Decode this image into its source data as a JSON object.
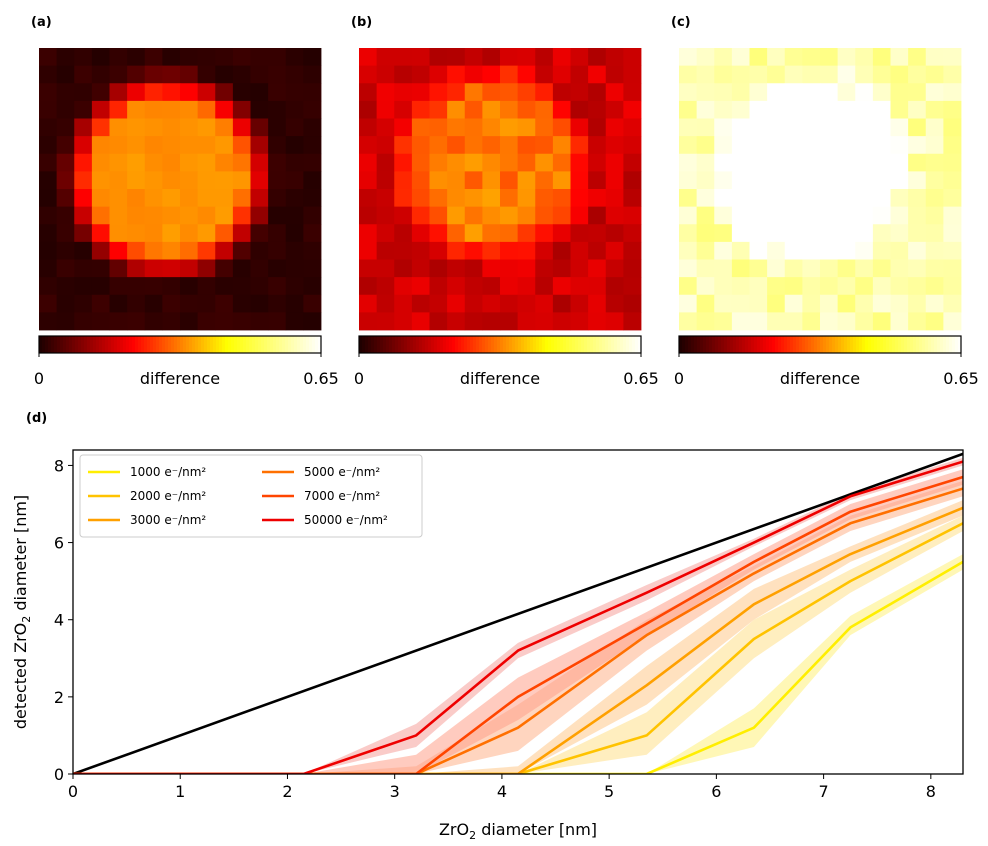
{
  "chart_data": [
    {
      "type": "heatmap",
      "panel_label": "(a)",
      "grid": [
        16,
        16
      ],
      "colormap": "hot",
      "colorbar": {
        "label": "difference",
        "min": 0,
        "max": 0.65,
        "min_label": "0",
        "max_label": "0.65"
      }
    },
    {
      "type": "heatmap",
      "panel_label": "(b)",
      "grid": [
        16,
        16
      ],
      "colormap": "hot",
      "colorbar": {
        "label": "difference",
        "min": 0,
        "max": 0.65,
        "min_label": "0",
        "max_label": "0.65"
      }
    },
    {
      "type": "heatmap",
      "panel_label": "(c)",
      "grid": [
        16,
        16
      ],
      "colormap": "hot",
      "colorbar": {
        "label": "difference",
        "min": 0,
        "max": 0.65,
        "min_label": "0",
        "max_label": "0.65"
      }
    },
    {
      "type": "line",
      "panel_label": "(d)",
      "xlabel_parts": [
        "ZrO",
        "2",
        " diameter [nm]"
      ],
      "ylabel_parts": [
        "detected ZrO",
        "2",
        " diameter [nm]"
      ],
      "xlim": [
        0,
        8.3
      ],
      "ylim": [
        0,
        8.4
      ],
      "xticks": [
        0,
        1,
        2,
        3,
        4,
        5,
        6,
        7,
        8
      ],
      "yticks": [
        0,
        2,
        4,
        6,
        8
      ],
      "legend_position": "upper left",
      "legend_columns": 2,
      "reference_line": {
        "color": "#000000",
        "x": [
          0,
          8.3
        ],
        "y": [
          0,
          8.3
        ]
      },
      "series": [
        {
          "name": "1000 e⁻/nm²",
          "color": "#ffee00",
          "band_color": "#fff07a",
          "x": [
            0,
            2.15,
            3.2,
            4.15,
            5.35,
            6.35,
            7.25,
            8.3
          ],
          "y": [
            0,
            0,
            0,
            0,
            0,
            1.2,
            3.8,
            5.5
          ],
          "lower": [
            0,
            0,
            0,
            0,
            0,
            0.7,
            3.6,
            5.3
          ],
          "upper": [
            0,
            0,
            0,
            0,
            0,
            1.7,
            4.1,
            5.7
          ]
        },
        {
          "name": "2000 e⁻/nm²",
          "color": "#ffc300",
          "band_color": "#ffe08a",
          "x": [
            0,
            2.15,
            3.2,
            4.15,
            5.35,
            6.35,
            7.25,
            8.3
          ],
          "y": [
            0,
            0,
            0,
            0,
            1.0,
            3.5,
            5.0,
            6.5
          ],
          "lower": [
            0,
            0,
            0,
            0,
            0.5,
            3.0,
            4.7,
            6.3
          ],
          "upper": [
            0,
            0,
            0,
            0,
            1.6,
            4.0,
            5.3,
            6.7
          ]
        },
        {
          "name": "3000 e⁻/nm²",
          "color": "#ffa000",
          "band_color": "#ffc88a",
          "x": [
            0,
            2.15,
            3.2,
            4.15,
            5.35,
            6.35,
            7.25,
            8.3
          ],
          "y": [
            0,
            0,
            0,
            0,
            2.3,
            4.4,
            5.7,
            6.9
          ],
          "lower": [
            0,
            0,
            0,
            0,
            1.8,
            4.0,
            5.5,
            6.7
          ],
          "upper": [
            0,
            0,
            0,
            0.2,
            2.8,
            4.8,
            5.9,
            7.1
          ]
        },
        {
          "name": "5000 e⁻/nm²",
          "color": "#ff7000",
          "band_color": "#ffb38a",
          "x": [
            0,
            2.15,
            3.2,
            4.15,
            5.35,
            6.35,
            7.25,
            8.3
          ],
          "y": [
            0,
            0,
            0,
            1.2,
            3.6,
            5.2,
            6.5,
            7.4
          ],
          "lower": [
            0,
            0,
            0,
            0.6,
            3.2,
            5.0,
            6.3,
            7.2
          ],
          "upper": [
            0,
            0,
            0.2,
            1.8,
            4.0,
            5.4,
            6.7,
            7.6
          ]
        },
        {
          "name": "7000 e⁻/nm²",
          "color": "#ff4500",
          "band_color": "#ffa08a",
          "x": [
            0,
            2.15,
            3.2,
            4.15,
            5.35,
            6.35,
            7.25,
            8.3
          ],
          "y": [
            0,
            0,
            0,
            2.0,
            3.9,
            5.5,
            6.8,
            7.7
          ],
          "lower": [
            0,
            0,
            0,
            1.4,
            3.6,
            5.3,
            6.6,
            7.5
          ],
          "upper": [
            0,
            0,
            0.5,
            2.5,
            4.2,
            5.7,
            7.0,
            7.9
          ]
        },
        {
          "name": "50000 e⁻/nm²",
          "color": "#ee0000",
          "band_color": "#f5a09a",
          "x": [
            0,
            2.15,
            3.2,
            4.15,
            5.35,
            6.35,
            7.25,
            8.3
          ],
          "y": [
            0,
            0,
            1.0,
            3.2,
            4.7,
            6.0,
            7.2,
            8.1
          ],
          "lower": [
            0,
            0,
            0.7,
            3.0,
            4.5,
            5.9,
            7.1,
            8.0
          ],
          "upper": [
            0,
            0,
            1.3,
            3.4,
            4.9,
            6.1,
            7.3,
            8.2
          ]
        }
      ]
    }
  ]
}
